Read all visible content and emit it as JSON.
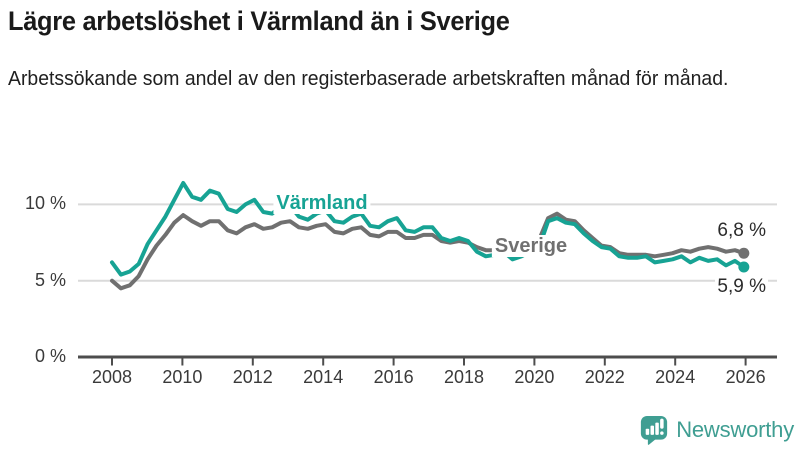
{
  "header": {
    "title": "Lägre arbetslöshet i Värmland än i Sverige",
    "subtitle": "Arbetssökande som andel av den registerbaserade arbetskraften månad för månad."
  },
  "chart_data": {
    "type": "line",
    "title": "Lägre arbetslöshet i Värmland än i Sverige",
    "subtitle": "Arbetssökande som andel av den registerbaserade arbetskraften månad för månad.",
    "xlabel": "",
    "ylabel": "",
    "x_range": [
      2008,
      2026
    ],
    "points_per_year": 4,
    "ylim": [
      0,
      12
    ],
    "grid": "horizontal",
    "legend": "inline-labels",
    "yticks": [
      {
        "value": 0,
        "label": "0 %"
      },
      {
        "value": 5,
        "label": "5 %"
      },
      {
        "value": 10,
        "label": "10 %"
      }
    ],
    "xticks": [
      {
        "value": 2008,
        "label": "2008"
      },
      {
        "value": 2010,
        "label": "2010"
      },
      {
        "value": 2012,
        "label": "2012"
      },
      {
        "value": 2014,
        "label": "2014"
      },
      {
        "value": 2016,
        "label": "2016"
      },
      {
        "value": 2018,
        "label": "2018"
      },
      {
        "value": 2020,
        "label": "2020"
      },
      {
        "value": 2022,
        "label": "2022"
      },
      {
        "value": 2024,
        "label": "2024"
      },
      {
        "value": 2026,
        "label": "2026"
      }
    ],
    "series": [
      {
        "id": "varmland",
        "name": "Värmland",
        "color": "#17a394",
        "end_value": 5.9,
        "end_label": "5,9 %",
        "values": [
          6.2,
          5.4,
          5.6,
          6.1,
          7.4,
          8.3,
          9.2,
          10.3,
          11.4,
          10.5,
          10.3,
          10.9,
          10.7,
          9.7,
          9.5,
          10.0,
          10.3,
          9.5,
          9.4,
          9.9,
          9.9,
          9.2,
          9.0,
          9.4,
          9.6,
          8.9,
          8.8,
          9.2,
          9.4,
          8.6,
          8.5,
          8.9,
          9.1,
          8.3,
          8.2,
          8.5,
          8.5,
          7.8,
          7.6,
          7.8,
          7.6,
          6.9,
          6.6,
          6.7,
          6.9,
          6.4,
          6.6,
          6.9,
          7.2,
          8.9,
          9.1,
          8.8,
          8.7,
          8.1,
          7.6,
          7.2,
          7.1,
          6.6,
          6.5,
          6.5,
          6.6,
          6.2,
          6.3,
          6.4,
          6.6,
          6.2,
          6.5,
          6.3,
          6.4,
          6.0,
          6.3,
          5.9
        ]
      },
      {
        "id": "sverige",
        "name": "Sverige",
        "color": "#707070",
        "end_value": 6.8,
        "end_label": "6,8 %",
        "values": [
          5.0,
          4.5,
          4.7,
          5.3,
          6.4,
          7.3,
          8.0,
          8.8,
          9.3,
          8.9,
          8.6,
          8.9,
          8.9,
          8.3,
          8.1,
          8.5,
          8.7,
          8.4,
          8.5,
          8.8,
          8.9,
          8.5,
          8.4,
          8.6,
          8.7,
          8.2,
          8.1,
          8.4,
          8.5,
          8.0,
          7.9,
          8.2,
          8.2,
          7.8,
          7.8,
          8.0,
          8.0,
          7.6,
          7.5,
          7.6,
          7.5,
          7.2,
          7.0,
          7.0,
          7.1,
          6.9,
          7.1,
          7.4,
          7.7,
          9.1,
          9.4,
          9.0,
          8.9,
          8.3,
          7.8,
          7.3,
          7.2,
          6.8,
          6.7,
          6.7,
          6.7,
          6.6,
          6.7,
          6.8,
          7.0,
          6.9,
          7.1,
          7.2,
          7.1,
          6.9,
          7.0,
          6.8
        ]
      }
    ]
  },
  "branding": {
    "logo_text": "Newsworthy",
    "logo_color": "#3f9e92",
    "logo_icon": "bar-chart-speech-bubble-icon"
  }
}
